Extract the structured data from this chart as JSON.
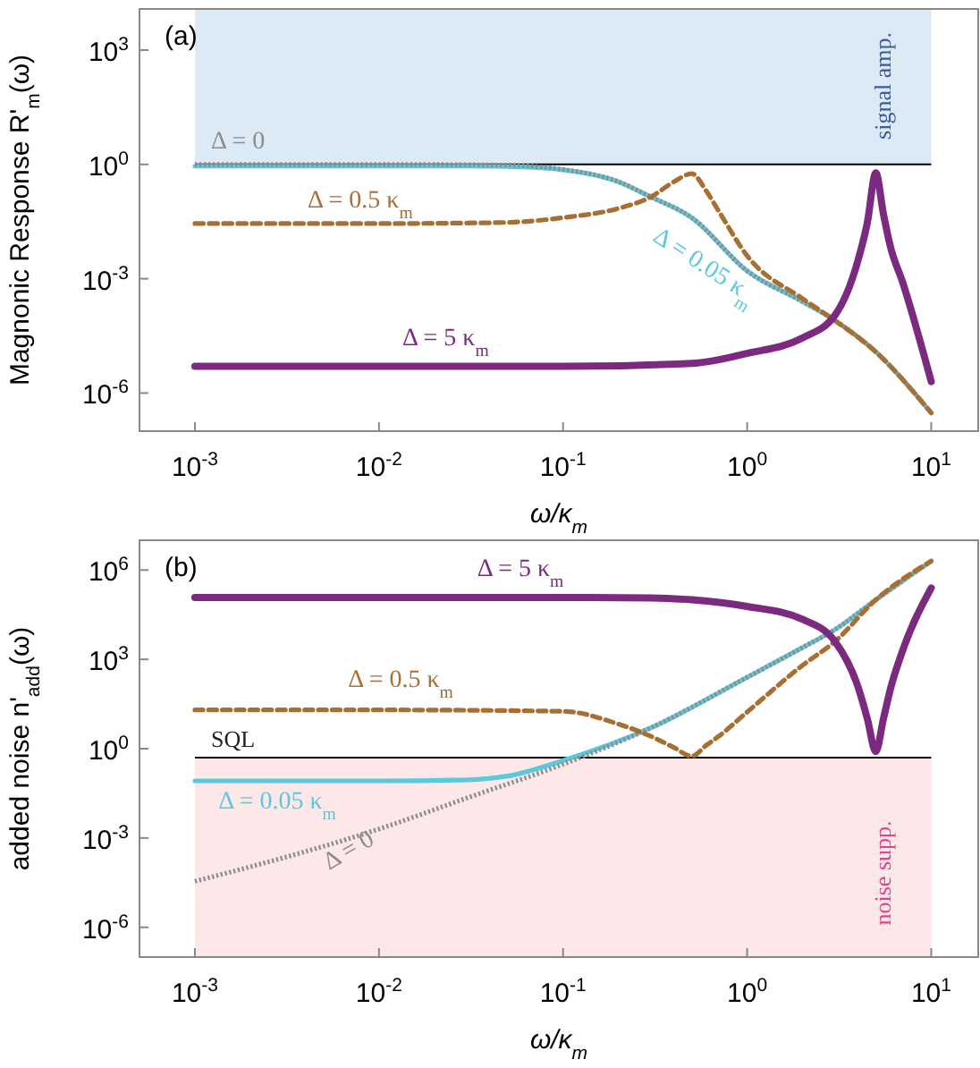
{
  "chart_data": [
    {
      "type": "line",
      "title": "(a)",
      "xlabel": "ω/κ$_{m}$",
      "ylabel": "Magnonic Response R'$_{m}$(ω)",
      "log": "xy",
      "grid": false,
      "xlim": [
        0.0005,
        18
      ],
      "ylim": [
        1e-07,
        12000
      ],
      "xticks": [
        {
          "value": 0.001,
          "label": "10$^{-3}$"
        },
        {
          "value": 0.01,
          "label": "10$^{-2}$"
        },
        {
          "value": 0.1,
          "label": "10$^{-1}$"
        },
        {
          "value": 1,
          "label": "10$^{0}$"
        },
        {
          "value": 10,
          "label": "10$^{1}$"
        }
      ],
      "yticks": [
        {
          "value": 1e-06,
          "label": "10$^{-6}$"
        },
        {
          "value": 0.001,
          "label": "10$^{-3}$"
        },
        {
          "value": 1,
          "label": "10$^{0}$"
        },
        {
          "value": 1000,
          "label": "10$^{3}$"
        }
      ],
      "bands": [
        {
          "axis": "y",
          "from": 1,
          "to": 12000,
          "label": "signal amp.",
          "color": "#dceaf6"
        }
      ],
      "ref_lines": [
        {
          "axis": "y",
          "value": 1,
          "label": null,
          "color": "#000000"
        }
      ],
      "series": [
        {
          "name": "Δ = 0.05 κ$_{m}$",
          "color": "#5bc8dc",
          "line_style": "solid",
          "x": [
            0.001,
            0.01,
            0.03,
            0.05,
            0.1,
            0.2,
            0.3,
            0.5,
            1,
            2,
            3,
            5,
            10
          ],
          "values": [
            0.9,
            0.9,
            0.9,
            0.88,
            0.72,
            0.35,
            0.14,
            0.04,
            0.0016,
            0.00025,
            8e-05,
            1.2e-05,
            3e-07
          ]
        },
        {
          "name": "Δ = 0",
          "color": "#8c8c8c",
          "line_style": "dotted",
          "x": [
            0.001,
            0.01,
            0.03,
            0.05,
            0.1,
            0.2,
            0.3,
            0.5,
            1,
            2,
            3,
            5,
            10
          ],
          "values": [
            1,
            1,
            0.98,
            0.95,
            0.74,
            0.35,
            0.14,
            0.04,
            0.0016,
            0.00025,
            8e-05,
            1.2e-05,
            3e-07
          ]
        },
        {
          "name": "Δ = 0.5 κ$_{m}$",
          "color": "#a86f32",
          "line_style": "dashed",
          "x": [
            0.001,
            0.01,
            0.03,
            0.05,
            0.1,
            0.2,
            0.3,
            0.4,
            0.5,
            0.6,
            0.7,
            1,
            2,
            3,
            5,
            10
          ],
          "values": [
            0.028,
            0.028,
            0.029,
            0.03,
            0.04,
            0.07,
            0.14,
            0.35,
            0.57,
            0.2,
            0.06,
            0.004,
            0.0003,
            8e-05,
            1.2e-05,
            3e-07
          ]
        },
        {
          "name": "Δ = 5 κ$_{m}$",
          "color": "#7b2a80",
          "line_style": "solid",
          "x": [
            0.001,
            0.01,
            0.1,
            0.5,
            1,
            2,
            3,
            4,
            4.5,
            5,
            5.5,
            6,
            7,
            10
          ],
          "values": [
            5e-06,
            5e-06,
            5e-06,
            6e-06,
            1.1e-05,
            2.8e-05,
            0.00011,
            0.003,
            0.03,
            0.6,
            0.05,
            0.007,
            0.0008,
            2e-06
          ]
        }
      ]
    },
    {
      "type": "line",
      "title": "(b)",
      "xlabel": "ω/κ$_{m}$",
      "ylabel": "added noise n'$_{add}$(ω)",
      "log": "xy",
      "grid": false,
      "xlim": [
        0.0005,
        18
      ],
      "ylim": [
        1e-07,
        10000000.0
      ],
      "xticks": [
        {
          "value": 0.001,
          "label": "10$^{-3}$"
        },
        {
          "value": 0.01,
          "label": "10$^{-2}$"
        },
        {
          "value": 0.1,
          "label": "10$^{-1}$"
        },
        {
          "value": 1,
          "label": "10$^{0}$"
        },
        {
          "value": 10,
          "label": "10$^{1}$"
        }
      ],
      "yticks": [
        {
          "value": 1e-06,
          "label": "10$^{-6}$"
        },
        {
          "value": 0.001,
          "label": "10$^{-3}$"
        },
        {
          "value": 1,
          "label": "10$^{0}$"
        },
        {
          "value": 1000,
          "label": "10$^{3}$"
        },
        {
          "value": 1000000,
          "label": "10$^{6}$"
        }
      ],
      "bands": [
        {
          "axis": "y",
          "from": 1e-07,
          "to": 0.5,
          "label": "noise supp.",
          "color": "#fce8e8"
        }
      ],
      "ref_lines": [
        {
          "axis": "y",
          "value": 0.5,
          "label": "SQL",
          "color": "#000000"
        }
      ],
      "series": [
        {
          "name": "Δ = 0.05 κ$_{m}$",
          "color": "#5bc8dc",
          "line_style": "solid",
          "x": [
            0.001,
            0.01,
            0.03,
            0.05,
            0.1,
            0.3,
            1,
            2,
            3,
            5,
            10
          ],
          "values": [
            0.083,
            0.083,
            0.09,
            0.12,
            0.4,
            5,
            250,
            2500,
            10000,
            100000,
            2000000
          ]
        },
        {
          "name": "Δ = 0",
          "color": "#8c8c8c",
          "line_style": "dotted",
          "x": [
            0.001,
            0.01,
            0.03,
            0.1,
            0.3,
            1,
            2,
            3,
            5,
            10
          ],
          "values": [
            3.5e-05,
            0.002,
            0.022,
            0.3,
            5,
            250,
            2500,
            10000,
            100000,
            2000000
          ]
        },
        {
          "name": "Δ = 0.5 κ$_{m}$",
          "color": "#a86f32",
          "line_style": "dashed",
          "x": [
            0.001,
            0.01,
            0.1,
            0.2,
            0.3,
            0.4,
            0.5,
            0.6,
            0.7,
            1,
            2,
            3,
            5,
            10
          ],
          "values": [
            20,
            20,
            18,
            6.7,
            2.6,
            1.1,
            0.56,
            1.3,
            2.6,
            17,
            630,
            4000,
            100000,
            2000000
          ]
        },
        {
          "name": "Δ = 5 κ$_{m}$",
          "color": "#7b2a80",
          "line_style": "solid",
          "x": [
            0.001,
            0.01,
            0.1,
            0.3,
            0.5,
            1,
            2,
            3,
            4,
            4.5,
            5,
            5.5,
            6,
            7,
            10
          ],
          "values": [
            120000,
            120000,
            120000,
            115000,
            100000,
            60000,
            22000,
            4000,
            120,
            10,
            0.8,
            10,
            100,
            2000,
            250000
          ]
        }
      ]
    }
  ]
}
